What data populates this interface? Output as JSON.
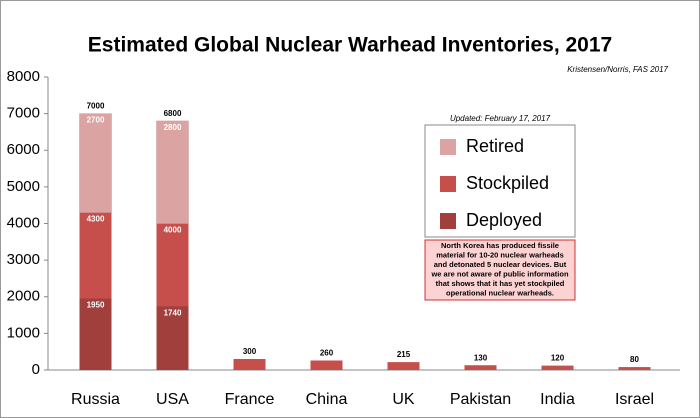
{
  "chart_data": {
    "type": "bar",
    "title": "Estimated Global Nuclear Warhead Inventories, 2017",
    "source": "Kristensen/Norris, FAS 2017",
    "updated": "Updated: February 17, 2017",
    "note": [
      "North Korea has produced fissile",
      "material for 10-20 nuclear warheads",
      "and detonated 5 nuclear devices. But",
      "we are not aware of public information",
      "that shows that it has yet stockpiled",
      "operational nuclear warheads."
    ],
    "categories": [
      "Russia",
      "USA",
      "France",
      "China",
      "UK",
      "Pakistan",
      "India",
      "Israel"
    ],
    "series": [
      {
        "name": "Deployed",
        "color": "#a13f3c",
        "values": [
          1950,
          1740,
          null,
          null,
          null,
          null,
          null,
          null
        ]
      },
      {
        "name": "Stockpiled",
        "color": "#c64f4b",
        "values": [
          4300,
          4000,
          300,
          260,
          215,
          130,
          120,
          80
        ]
      },
      {
        "name": "Retired",
        "color": "#dba3a2",
        "values": [
          2700,
          2800,
          null,
          null,
          null,
          null,
          null,
          null
        ]
      }
    ],
    "totals": [
      7000,
      6800,
      null,
      null,
      null,
      null,
      null,
      null
    ],
    "ylim": [
      0,
      8000
    ],
    "yticks": [
      0,
      1000,
      2000,
      3000,
      4000,
      5000,
      6000,
      7000,
      8000
    ]
  }
}
